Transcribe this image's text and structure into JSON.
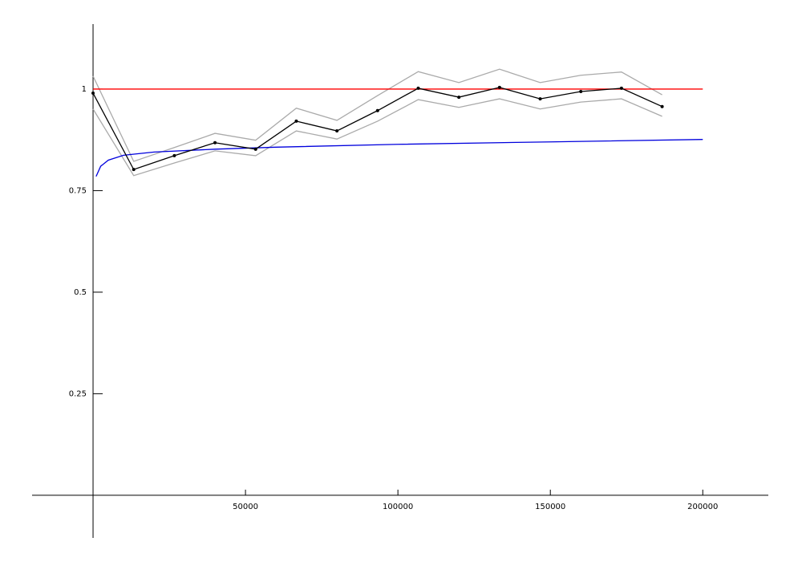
{
  "chart_data": {
    "type": "line",
    "xlim": [
      -20000,
      221500
    ],
    "ylim": [
      -0.105,
      1.16
    ],
    "xticks": [
      50000,
      100000,
      150000,
      200000
    ],
    "yticks": [
      0.25,
      0.5,
      0.75,
      1
    ],
    "series": [
      {
        "color": "#aaaaaa",
        "x": [
          0,
          13333,
          26667,
          40000,
          53333,
          66667,
          80000,
          93333,
          106667,
          120000,
          133333,
          146667,
          160000,
          173333,
          186667
        ],
        "values": [
          1.032,
          0.822,
          0.856,
          0.891,
          0.874,
          0.953,
          0.923,
          0.984,
          1.043,
          1.016,
          1.049,
          1.016,
          1.034,
          1.042,
          0.986
        ]
      },
      {
        "color": "#aaaaaa",
        "x": [
          0,
          13333,
          26667,
          40000,
          53333,
          66667,
          80000,
          93333,
          106667,
          120000,
          133333,
          146667,
          160000,
          173333,
          186667
        ],
        "values": [
          0.951,
          0.787,
          0.818,
          0.848,
          0.836,
          0.897,
          0.877,
          0.921,
          0.974,
          0.955,
          0.976,
          0.951,
          0.968,
          0.976,
          0.933
        ]
      },
      {
        "color": "#ff0000",
        "x": [
          0,
          200000
        ],
        "values": [
          1,
          1
        ]
      },
      {
        "color": "#0000dd",
        "x": [
          1000,
          2500,
          5000,
          10000,
          20000,
          40000,
          60000,
          100000,
          150000,
          200000
        ],
        "values": [
          0.785,
          0.81,
          0.825,
          0.837,
          0.845,
          0.852,
          0.857,
          0.864,
          0.87,
          0.876
        ]
      },
      {
        "color": "#000000",
        "markers": true,
        "x": [
          0,
          13333,
          26667,
          40000,
          53333,
          66667,
          80000,
          93333,
          106667,
          120000,
          133333,
          146667,
          160000,
          173333,
          186667
        ],
        "values": [
          0.99,
          0.802,
          0.836,
          0.868,
          0.852,
          0.921,
          0.897,
          0.947,
          1.002,
          0.98,
          1.004,
          0.976,
          0.994,
          1.002,
          0.957
        ]
      }
    ]
  }
}
